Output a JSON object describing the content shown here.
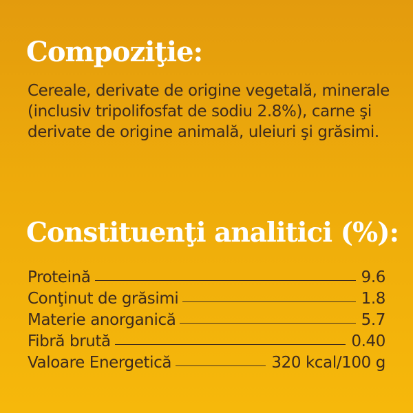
{
  "composition": {
    "title": "Compoziţie:",
    "text": "Cereale, derivate de origine vegetală, minerale (inclusiv tripolifosfat de sodiu 2.8%), carne şi derivate de origine animală, uleiuri şi grăsimi."
  },
  "analytical_constituents": {
    "title": "Constituenţi analitici (%):",
    "rows": [
      {
        "label": "Proteină",
        "value": "9.6"
      },
      {
        "label": "Conţinut de grăsimi",
        "value": "1.8"
      },
      {
        "label": "Materie anorganică",
        "value": "5.7"
      },
      {
        "label": "Fibră brută",
        "value": "0.40"
      },
      {
        "label": "Valoare Energetică",
        "value": "320 kcal/100 g"
      }
    ]
  },
  "colors": {
    "background_top": "#E39B0D",
    "background_bottom": "#F6B80B",
    "heading": "#FFFFFF",
    "body_text": "#3C2A1E"
  }
}
